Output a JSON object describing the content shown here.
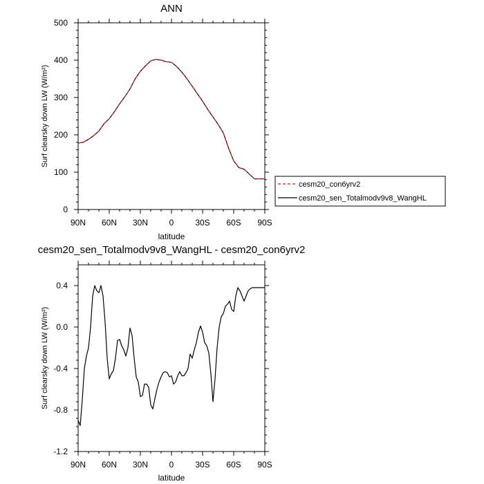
{
  "chart_data": [
    {
      "type": "line",
      "title": "ANN",
      "xlabel": "latitude",
      "ylabel": "Surf clearsky down LW (W/m²)",
      "xlim": [
        90,
        -90
      ],
      "ylim": [
        0,
        500
      ],
      "xticks": [
        90,
        60,
        30,
        0,
        -30,
        -60,
        -90
      ],
      "xtick_labels": [
        "90N",
        "60N",
        "30N",
        "0",
        "30S",
        "60S",
        "90S"
      ],
      "yticks": [
        0,
        100,
        200,
        300,
        400,
        500
      ],
      "ytick_labels": [
        "0",
        "100",
        "200",
        "300",
        "400",
        "500"
      ],
      "legend_position": "right",
      "series": [
        {
          "name": "cesm20_con6yrv2",
          "color": "#c0201a",
          "dash": "dashed",
          "x": [
            90,
            85,
            80,
            75,
            70,
            65,
            60,
            55,
            50,
            45,
            40,
            35,
            30,
            25,
            20,
            15,
            10,
            5,
            0,
            -5,
            -10,
            -15,
            -20,
            -25,
            -30,
            -35,
            -40,
            -45,
            -50,
            -55,
            -60,
            -65,
            -70,
            -75,
            -80,
            -85,
            -90
          ],
          "y": [
            178,
            180,
            188,
            198,
            210,
            230,
            243,
            262,
            283,
            302,
            323,
            350,
            370,
            385,
            398,
            402,
            400,
            396,
            394,
            383,
            368,
            350,
            330,
            310,
            290,
            268,
            248,
            228,
            205,
            165,
            130,
            112,
            108,
            95,
            82,
            82,
            82
          ]
        },
        {
          "name": "cesm20_sen_Totalmodv9v8_WangHL",
          "color": "#000000",
          "dash": "solid",
          "x": [
            90,
            85,
            80,
            75,
            70,
            65,
            60,
            55,
            50,
            45,
            40,
            35,
            30,
            25,
            20,
            15,
            10,
            5,
            0,
            -5,
            -10,
            -15,
            -20,
            -25,
            -30,
            -35,
            -40,
            -45,
            -50,
            -55,
            -60,
            -65,
            -70,
            -75,
            -80,
            -85,
            -90
          ],
          "y": [
            178,
            180,
            188,
            198,
            210,
            230,
            243,
            262,
            283,
            302,
            323,
            350,
            370,
            385,
            398,
            402,
            400,
            396,
            394,
            383,
            368,
            350,
            330,
            310,
            290,
            268,
            248,
            228,
            205,
            165,
            130,
            112,
            108,
            95,
            82,
            82,
            82
          ]
        }
      ]
    },
    {
      "type": "line",
      "title": "cesm20_sen_Totalmodv9v8_WangHL - cesm20_con6yrv2",
      "xlabel": "latitude",
      "ylabel": "Surf clearsky down LW (W/m²)",
      "xlim": [
        90,
        -90
      ],
      "ylim": [
        -1.2,
        0.6
      ],
      "xticks": [
        90,
        60,
        30,
        0,
        -30,
        -60,
        -90
      ],
      "xtick_labels": [
        "90N",
        "60N",
        "30N",
        "0",
        "30S",
        "60S",
        "90S"
      ],
      "yticks": [
        -1.2,
        -0.8,
        -0.4,
        0.0,
        0.4
      ],
      "ytick_labels": [
        "-1.2",
        "-0.8",
        "-0.4",
        "0.0",
        "0.4"
      ],
      "series": [
        {
          "color": "#000000",
          "x": [
            90,
            88,
            86,
            84,
            82,
            80,
            78,
            76,
            74,
            72,
            70,
            68,
            66,
            64,
            62,
            60,
            58,
            56,
            54,
            52,
            50,
            48,
            46,
            44,
            42,
            40,
            38,
            36,
            34,
            32,
            30,
            28,
            26,
            24,
            22,
            20,
            18,
            16,
            14,
            12,
            10,
            8,
            6,
            4,
            2,
            0,
            -2,
            -4,
            -6,
            -8,
            -10,
            -12,
            -14,
            -16,
            -18,
            -20,
            -22,
            -24,
            -26,
            -28,
            -30,
            -32,
            -34,
            -36,
            -38,
            -40,
            -42,
            -44,
            -46,
            -48,
            -50,
            -52,
            -54,
            -56,
            -58,
            -60,
            -62,
            -64,
            -66,
            -68,
            -70,
            -72,
            -74,
            -76,
            -78,
            -80,
            -82,
            -84,
            -86,
            -88,
            -90
          ],
          "y": [
            -0.9,
            -0.95,
            -0.7,
            -0.4,
            -0.28,
            -0.2,
            0.0,
            0.3,
            0.4,
            0.35,
            0.33,
            0.4,
            0.3,
            0.05,
            -0.3,
            -0.5,
            -0.45,
            -0.42,
            -0.3,
            -0.13,
            -0.12,
            -0.18,
            -0.22,
            -0.28,
            -0.2,
            -0.01,
            -0.08,
            -0.3,
            -0.48,
            -0.53,
            -0.67,
            -0.66,
            -0.55,
            -0.55,
            -0.58,
            -0.75,
            -0.79,
            -0.69,
            -0.6,
            -0.53,
            -0.48,
            -0.44,
            -0.43,
            -0.44,
            -0.48,
            -0.47,
            -0.55,
            -0.53,
            -0.47,
            -0.43,
            -0.47,
            -0.47,
            -0.44,
            -0.4,
            -0.26,
            -0.3,
            -0.22,
            -0.15,
            -0.05,
            0.01,
            -0.05,
            -0.15,
            -0.18,
            -0.25,
            -0.45,
            -0.72,
            -0.5,
            -0.2,
            0.0,
            0.1,
            0.13,
            0.2,
            0.22,
            0.25,
            0.17,
            0.15,
            0.3,
            0.38,
            0.35,
            0.3,
            0.25,
            0.3,
            0.35,
            0.37,
            0.38,
            0.38,
            0.38,
            0.38,
            0.38,
            0.38,
            0.38
          ]
        }
      ]
    }
  ]
}
